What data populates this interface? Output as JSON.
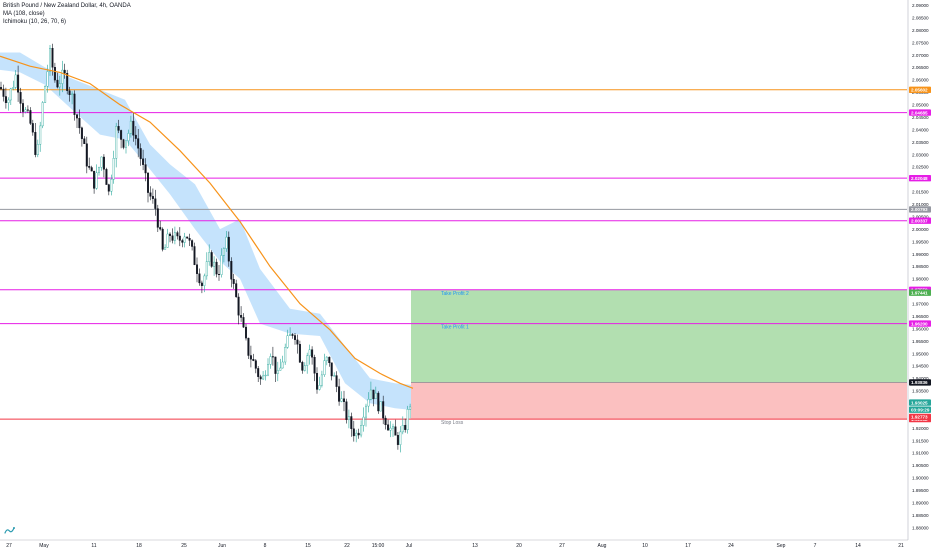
{
  "header": {
    "symbol_title": "British Pound / New Zealand Dollar, 4h, OANDA",
    "indicators": [
      "MA (108, close)",
      "Ichimoku (10, 26, 70, 6)"
    ]
  },
  "chart_data": {
    "type": "candlestick",
    "title": "British Pound / New Zealand Dollar, 4h, OANDA",
    "ylim": [
      1.875,
      2.0905
    ],
    "y_ticks": [
      2.09,
      2.085,
      2.08,
      2.075,
      2.07,
      2.065,
      2.06,
      2.055,
      2.05,
      2.045,
      2.04,
      2.035,
      2.03,
      2.025,
      2.02,
      2.015,
      2.01,
      2.005,
      2.0,
      1.995,
      1.99,
      1.985,
      1.98,
      1.975,
      1.97,
      1.965,
      1.96,
      1.955,
      1.95,
      1.945,
      1.94,
      1.935,
      1.93,
      1.925,
      1.92,
      1.915,
      1.91,
      1.905,
      1.9,
      1.895,
      1.89,
      1.885,
      1.88
    ],
    "y_tick_labels": [
      "2.09000",
      "2.08500",
      "2.08000",
      "2.07500",
      "2.07000",
      "2.06500",
      "2.06000",
      "2.05500",
      "2.05000",
      "2.04500",
      "2.04000",
      "2.03500",
      "2.03000",
      "2.02500",
      "2.02000",
      "2.01500",
      "2.01000",
      "2.00500",
      "2.00000",
      "1.99500",
      "1.99000",
      "1.98500",
      "1.98000",
      "1.97500",
      "1.97000",
      "1.96500",
      "1.96000",
      "1.95500",
      "1.95000",
      "1.94500",
      "1.94000",
      "1.93500",
      "1.93000",
      "1.92500",
      "1.92000",
      "1.91500",
      "1.91000",
      "1.90500",
      "1.90000",
      "1.89500",
      "1.89000",
      "1.88500",
      "1.88000"
    ],
    "x_ticks": [
      "27",
      "May",
      "11",
      "18",
      "25",
      "Jun",
      "8",
      "15",
      "22",
      "15:00",
      "Jul",
      "13",
      "20",
      "27",
      "Aug",
      "10",
      "17",
      "24",
      "Sep",
      "7",
      "14",
      "21"
    ],
    "horizontal_levels": [
      {
        "label": "2.05602",
        "value": 2.05602,
        "color": "#f7931a"
      },
      {
        "label": "2.04685",
        "value": 2.04685,
        "color": "#e61ee6"
      },
      {
        "label": "2.02048",
        "value": 2.02048,
        "color": "#e61ee6"
      },
      {
        "label": "2.00793",
        "value": 2.00793,
        "color": "#9598a1"
      },
      {
        "label": "2.00337",
        "value": 2.00337,
        "color": "#e61ee6"
      },
      {
        "label": "1.97559",
        "value": 1.97559,
        "color": "#e61ee6"
      },
      {
        "label": "1.96200",
        "value": 1.962,
        "color": "#e61ee6"
      },
      {
        "label": "1.92362",
        "value": 1.92362,
        "color": "#f23645"
      }
    ],
    "price_scale_badges": [
      {
        "label": "1.97441",
        "value": 1.97441,
        "color": "#4caf50"
      },
      {
        "label": "1.93836",
        "value": 1.93836,
        "color": "#131722"
      },
      {
        "label": "1.93025",
        "value": 1.93025,
        "color": "#26a69a"
      },
      {
        "label": "03:09:29",
        "value": 1.9274,
        "color": "#26a69a"
      },
      {
        "label": "1.92773",
        "value": 1.9245,
        "color": "#f23645"
      }
    ],
    "position": {
      "entry": 1.93836,
      "stop_loss": 1.92362,
      "take_profit_1": 1.962,
      "take_profit_2": 1.97559,
      "take_profit_2_label": "Take Profit 2",
      "take_profit_1_label": "Take Profit 1",
      "stop_loss_label": "Stop Loss",
      "profit_color": "#b2dfb0",
      "loss_color": "#fbc0c0"
    },
    "ma_108": [
      [
        0,
        2.0695
      ],
      [
        30,
        2.0655
      ],
      [
        60,
        2.063
      ],
      [
        90,
        2.0585
      ],
      [
        120,
        2.05
      ],
      [
        150,
        2.043
      ],
      [
        180,
        2.0315
      ],
      [
        210,
        2.0185
      ],
      [
        240,
        2.003
      ],
      [
        270,
        1.985
      ],
      [
        300,
        1.97
      ],
      [
        330,
        1.9595
      ],
      [
        355,
        1.948
      ],
      [
        380,
        1.942
      ],
      [
        400,
        1.938
      ],
      [
        413,
        1.936
      ]
    ],
    "ichimoku_cloud": [
      [
        0,
        2.071,
        2.064
      ],
      [
        20,
        2.071,
        2.063
      ],
      [
        45,
        2.065,
        2.058
      ],
      [
        75,
        2.06,
        2.047
      ],
      [
        100,
        2.056,
        2.038
      ],
      [
        125,
        2.052,
        2.036
      ],
      [
        150,
        2.034,
        2.024
      ],
      [
        170,
        2.026,
        2.014
      ],
      [
        195,
        2.018,
        2.0
      ],
      [
        220,
        2.0,
        1.987
      ],
      [
        240,
        2.004,
        1.98
      ],
      [
        260,
        1.984,
        1.962
      ],
      [
        290,
        1.968,
        1.958
      ],
      [
        320,
        1.966,
        1.957
      ],
      [
        345,
        1.953,
        1.938
      ],
      [
        370,
        1.94,
        1.93
      ],
      [
        395,
        1.938,
        1.928
      ],
      [
        420,
        1.937,
        1.927
      ]
    ],
    "ohlc_path": [
      [
        0,
        2.057
      ],
      [
        8,
        2.052
      ],
      [
        16,
        2.062
      ],
      [
        22,
        2.05
      ],
      [
        30,
        2.043
      ],
      [
        37,
        2.029
      ],
      [
        44,
        2.055
      ],
      [
        50,
        2.07
      ],
      [
        56,
        2.058
      ],
      [
        64,
        2.062
      ],
      [
        72,
        2.053
      ],
      [
        80,
        2.04
      ],
      [
        88,
        2.025
      ],
      [
        95,
        2.018
      ],
      [
        102,
        2.03
      ],
      [
        109,
        2.014
      ],
      [
        116,
        2.04
      ],
      [
        124,
        2.035
      ],
      [
        132,
        2.042
      ],
      [
        140,
        2.03
      ],
      [
        148,
        2.015
      ],
      [
        156,
        2.008
      ],
      [
        163,
        1.99
      ],
      [
        170,
        1.998
      ],
      [
        178,
        1.995
      ],
      [
        186,
        1.999
      ],
      [
        194,
        1.988
      ],
      [
        202,
        1.978
      ],
      [
        210,
        1.989
      ],
      [
        218,
        1.982
      ],
      [
        226,
        1.995
      ],
      [
        233,
        1.978
      ],
      [
        240,
        1.965
      ],
      [
        247,
        1.952
      ],
      [
        255,
        1.945
      ],
      [
        262,
        1.938
      ],
      [
        270,
        1.952
      ],
      [
        278,
        1.94
      ],
      [
        286,
        1.953
      ],
      [
        294,
        1.96
      ],
      [
        302,
        1.945
      ],
      [
        310,
        1.952
      ],
      [
        318,
        1.935
      ],
      [
        326,
        1.948
      ],
      [
        334,
        1.94
      ],
      [
        342,
        1.93
      ],
      [
        350,
        1.921
      ],
      [
        357,
        1.917
      ],
      [
        364,
        1.928
      ],
      [
        371,
        1.936
      ],
      [
        378,
        1.93
      ],
      [
        384,
        1.925
      ],
      [
        390,
        1.92
      ],
      [
        397,
        1.915
      ],
      [
        404,
        1.919
      ],
      [
        410,
        1.93
      ]
    ]
  }
}
